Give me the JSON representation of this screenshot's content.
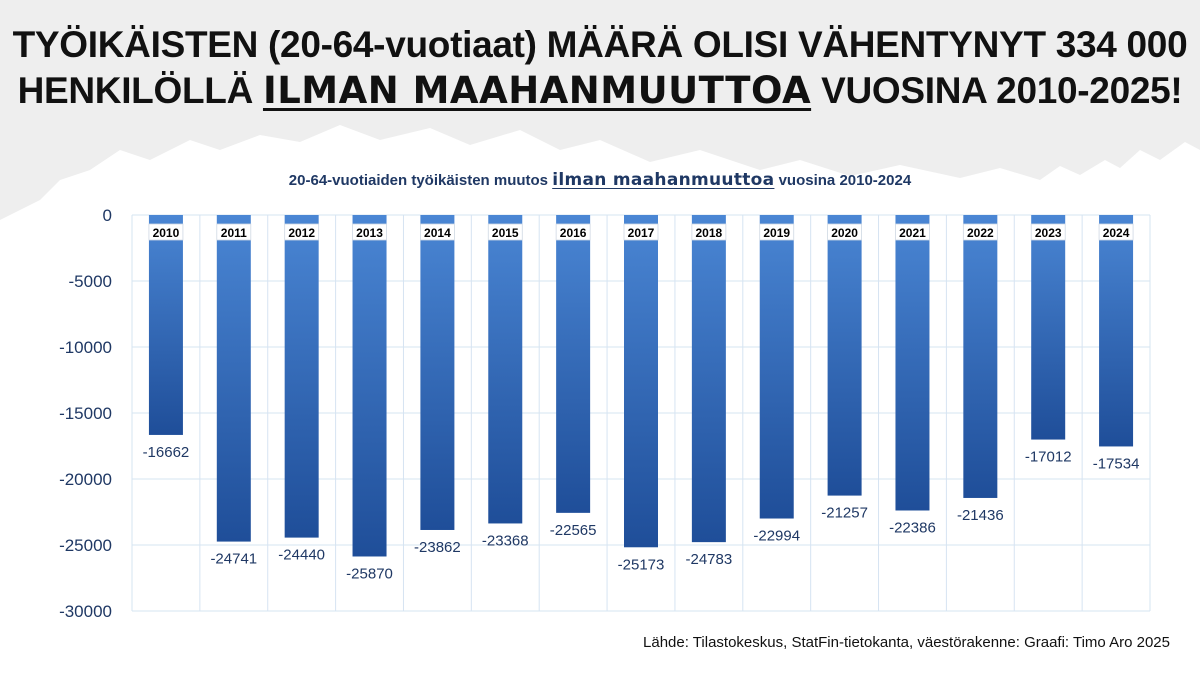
{
  "headline": {
    "line1": "TYÖIKÄISTEN (20-64-vuotiaat) MÄÄRÄ OLISI VÄHENTYNYT 334 000",
    "line2_before": "HENKILÖLLÄ ",
    "line2_emph": "ILMAN MAAHANMUUTTOA",
    "line2_after": " VUOSINA 2010-2025!"
  },
  "chart_title": {
    "before": "20-64-vuotiaiden työikäisten muutos ",
    "emph": "ilman maahanmuuttoa",
    "after": " vuosina 2010-2024"
  },
  "source": "Lähde: Tilastokeskus, StatFin-tietokanta, väestörakenne: Graafi: Timo Aro 2025",
  "chart_data": {
    "type": "bar",
    "title": "20-64-vuotiaiden työikäisten muutos ilman maahanmuuttoa vuosina 2010-2024",
    "categories": [
      "2010",
      "2011",
      "2012",
      "2013",
      "2014",
      "2015",
      "2016",
      "2017",
      "2018",
      "2019",
      "2020",
      "2021",
      "2022",
      "2023",
      "2024"
    ],
    "values": [
      -16662,
      -24741,
      -24440,
      -25870,
      -23862,
      -23368,
      -22565,
      -25173,
      -24783,
      -22994,
      -21257,
      -22386,
      -21436,
      -17012,
      -17534
    ],
    "ylim": [
      -30000,
      0
    ],
    "yticks": [
      0,
      -5000,
      -10000,
      -15000,
      -20000,
      -25000,
      -30000
    ],
    "xlabel": "",
    "ylabel": "",
    "grid": true,
    "category_labels_inside_bars": true,
    "value_labels_below_bars": true
  },
  "colors": {
    "bar_top": "#4a86d4",
    "bar_bottom": "#1f4e99",
    "axis_text": "#1f3864",
    "grid": "#d6e4f2",
    "background_mountain": "#eeeeee"
  }
}
